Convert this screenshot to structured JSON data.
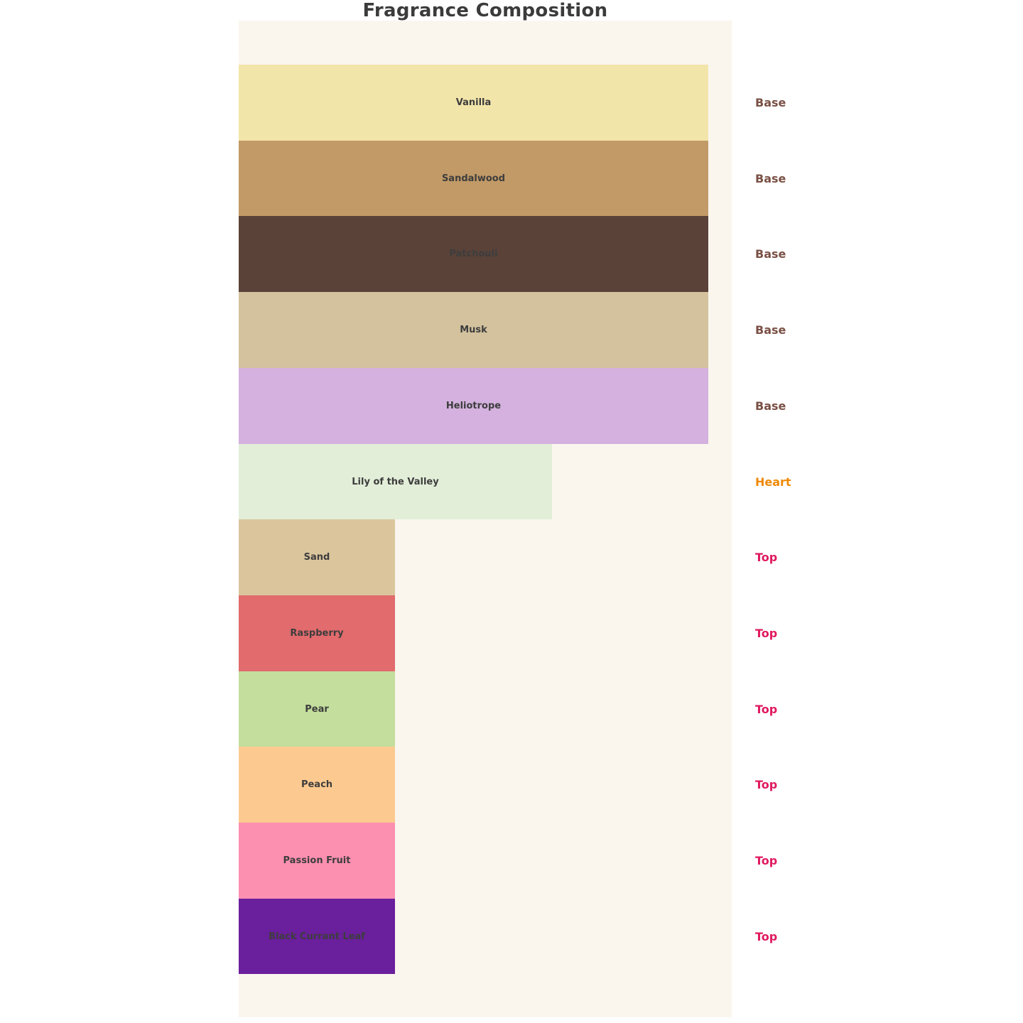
{
  "page": {
    "background": "#ffffff"
  },
  "chart_data": {
    "type": "bar",
    "orientation": "horizontal",
    "title": "Fragrance Composition",
    "xlabel": "",
    "ylabel": "",
    "x_range": [
      0,
      3
    ],
    "grid": false,
    "axes_visible": false,
    "panel_background": "#faf6ee",
    "title_color": "#3b3b3b",
    "bar_label_color": "#3d3d3d",
    "category_colors": {
      "Base": "#7a5045",
      "Heart": "#ef8905",
      "Top": "#e0195f"
    },
    "notes": [
      {
        "label": "Vanilla",
        "category": "Base",
        "value": 3,
        "color": "#f2e5a9"
      },
      {
        "label": "Sandalwood",
        "category": "Base",
        "value": 3,
        "color": "#c19a67"
      },
      {
        "label": "Patchouli",
        "category": "Base",
        "value": 3,
        "color": "#5a4238"
      },
      {
        "label": "Musk",
        "category": "Base",
        "value": 3,
        "color": "#d4c29e"
      },
      {
        "label": "Heliotrope",
        "category": "Base",
        "value": 3,
        "color": "#d4b1de"
      },
      {
        "label": "Lily of the Valley",
        "category": "Heart",
        "value": 2,
        "color": "#e2eed8"
      },
      {
        "label": "Sand",
        "category": "Top",
        "value": 1,
        "color": "#dbc59d"
      },
      {
        "label": "Raspberry",
        "category": "Top",
        "value": 1,
        "color": "#e16b6d"
      },
      {
        "label": "Pear",
        "category": "Top",
        "value": 1,
        "color": "#c3de9d"
      },
      {
        "label": "Peach",
        "category": "Top",
        "value": 1,
        "color": "#fcca90"
      },
      {
        "label": "Passion Fruit",
        "category": "Top",
        "value": 1,
        "color": "#fc90b1"
      },
      {
        "label": "Black Currant Leaf",
        "category": "Top",
        "value": 1,
        "color": "#6a1f9c"
      }
    ]
  }
}
